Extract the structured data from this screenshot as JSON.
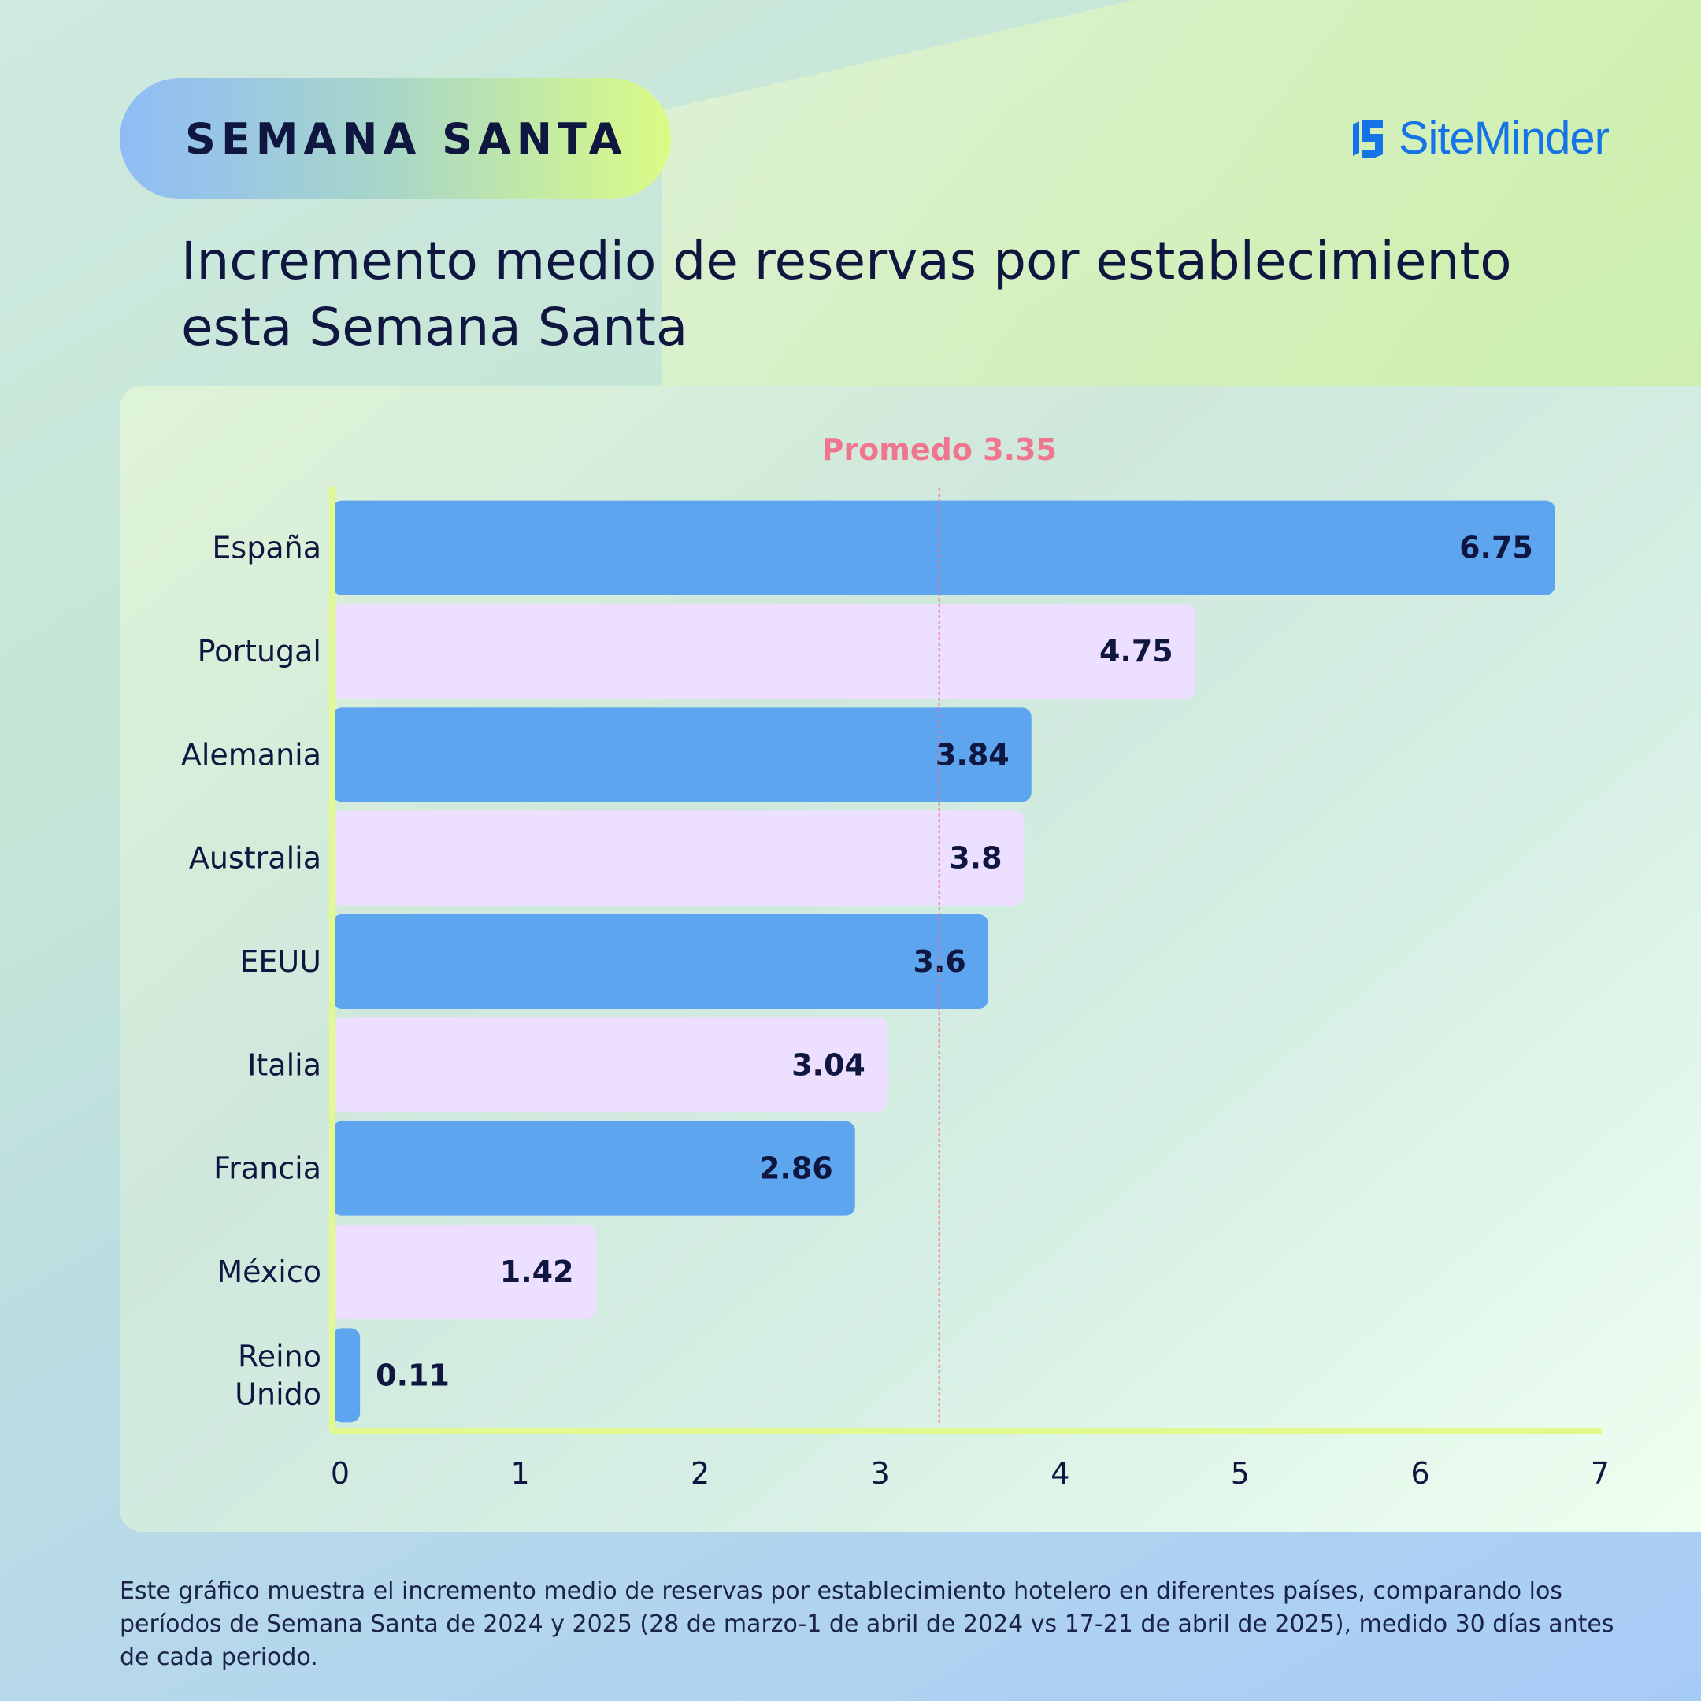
{
  "badge": {
    "label": "SEMANA SANTA"
  },
  "brand": {
    "name": "SiteMinder",
    "color": "#1473e6"
  },
  "title": "Incremento medio de reservas por establecimiento\nesta Semana Santa",
  "footnote": "Este gráfico muestra el incremento medio de reservas por establecimiento hotelero en diferentes países, comparando los períodos de Semana Santa de 2024 y 2025 (28 de marzo-1 de abril de 2024 vs 17-21 de abril de 2025), medido 30 días antes de cada periodo.",
  "chart_data": {
    "type": "bar",
    "orientation": "horizontal",
    "categories": [
      "España",
      "Portugal",
      "Alemania",
      "Australia",
      "EEUU",
      "Italia",
      "Francia",
      "México",
      "Reino Unido"
    ],
    "category_lines": [
      [
        "España"
      ],
      [
        "Portugal"
      ],
      [
        "Alemania"
      ],
      [
        "Australia"
      ],
      [
        "EEUU"
      ],
      [
        "Italia"
      ],
      [
        "Francia"
      ],
      [
        "México"
      ],
      [
        "Reino",
        "Unido"
      ]
    ],
    "values": [
      6.75,
      4.75,
      3.84,
      3.8,
      3.6,
      3.04,
      2.86,
      1.42,
      0.11
    ],
    "value_labels": [
      "6.75",
      "4.75",
      "3.84",
      "3.8",
      "3.6",
      "3.04",
      "2.86",
      "1.42",
      "0.11"
    ],
    "xlim": [
      0,
      7
    ],
    "xticks": [
      0,
      1,
      2,
      3,
      4,
      5,
      6,
      7
    ],
    "reference_line": {
      "label": "Promedo 3.35",
      "value": 3.35,
      "color": "#f0768f"
    },
    "bar_colors": [
      "#5ea5ef",
      "#ecdfff"
    ],
    "axis_color": "#e2f98d",
    "grid": false,
    "legend": "none"
  }
}
